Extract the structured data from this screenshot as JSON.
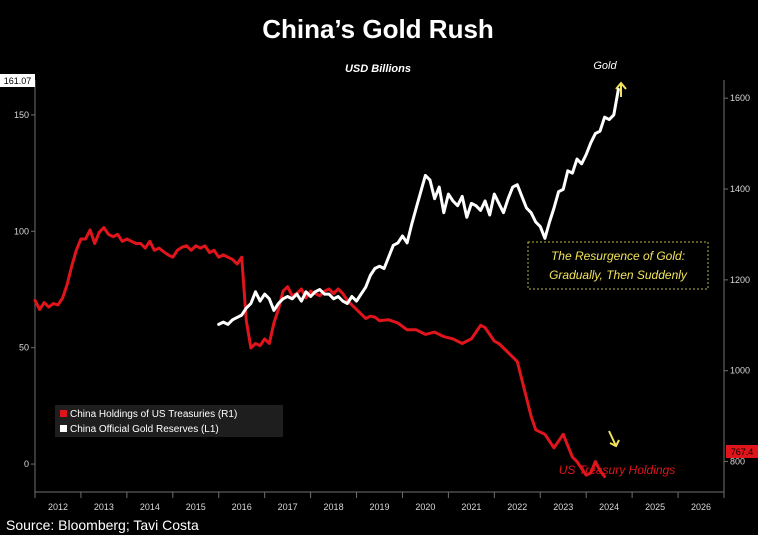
{
  "colors": {
    "background": "#000000",
    "gold_line": "#ffffff",
    "treasury_line": "#e0141b",
    "axis": "#6f6f6f",
    "tick_text": "#d8d8d8",
    "annotation_text": "#f2e35a",
    "callout_border": "#b8b44a",
    "arrow": "#f2e35a",
    "treasury_label": "#e0141b",
    "last_value_box_left": "#ffffff",
    "last_value_box_right": "#e0141b"
  },
  "chart_data": {
    "type": "line",
    "title": "China’s Gold Rush",
    "subtitle": "USD Billions",
    "source": "Source: Bloomberg; Tavi Costa",
    "x_axis": {
      "range": [
        2011.5,
        2026.5
      ],
      "tick_labels": [
        "2012",
        "2013",
        "2014",
        "2015",
        "2016",
        "2017",
        "2018",
        "2019",
        "2020",
        "2021",
        "2022",
        "2023",
        "2024",
        "2025",
        "2026"
      ]
    },
    "y_left": {
      "range": [
        -12,
        165
      ],
      "tick_labels": [
        "150",
        "100",
        "50",
        "0"
      ],
      "ticks": [
        150,
        100,
        50,
        0
      ]
    },
    "y_right": {
      "range": [
        733,
        1640
      ],
      "tick_labels": [
        "1600",
        "1400",
        "1200",
        "1000",
        "800"
      ],
      "ticks": [
        1600,
        1400,
        1200,
        1000,
        800
      ]
    },
    "legend": {
      "placement": "bottom-left",
      "items": [
        {
          "label": "China Holdings of US Treasuries (R1)",
          "color": "#e0141b"
        },
        {
          "label": "China Official Gold Reserves (L1)",
          "color": "#ffffff"
        }
      ]
    },
    "last_values": {
      "left": "161.07",
      "right": "767.4"
    },
    "annotations": {
      "gold_label": "Gold",
      "treasury_label": "US Treasury Holdings",
      "callout_line1": "The Resurgence of Gold:",
      "callout_line2": "Gradually, Then Suddenly"
    },
    "series": [
      {
        "name": "China Holdings of US Treasuries (R1)",
        "axis": "right",
        "x": [
          2011.5,
          2011.6,
          2011.7,
          2011.8,
          2011.9,
          2012.0,
          2012.1,
          2012.2,
          2012.3,
          2012.4,
          2012.5,
          2012.6,
          2012.7,
          2012.8,
          2012.9,
          2013.0,
          2013.1,
          2013.2,
          2013.3,
          2013.4,
          2013.5,
          2013.6,
          2013.7,
          2013.8,
          2013.9,
          2014.0,
          2014.1,
          2014.2,
          2014.3,
          2014.4,
          2014.5,
          2014.6,
          2014.7,
          2014.8,
          2014.9,
          2015.0,
          2015.1,
          2015.2,
          2015.3,
          2015.4,
          2015.5,
          2015.6,
          2015.7,
          2015.8,
          2015.9,
          2016.0,
          2016.1,
          2016.2,
          2016.3,
          2016.4,
          2016.5,
          2016.6,
          2016.7,
          2016.8,
          2016.9,
          2017.0,
          2017.1,
          2017.2,
          2017.3,
          2017.4,
          2017.5,
          2017.6,
          2017.7,
          2017.8,
          2017.9,
          2018.0,
          2018.1,
          2018.2,
          2018.3,
          2018.4,
          2018.5,
          2018.6,
          2018.7,
          2018.8,
          2018.9,
          2019.0,
          2019.2,
          2019.4,
          2019.6,
          2019.8,
          2020.0,
          2020.2,
          2020.4,
          2020.6,
          2020.8,
          2021.0,
          2021.1,
          2021.2,
          2021.3,
          2021.4,
          2021.5,
          2021.6,
          2021.8,
          2022.0,
          2022.1,
          2022.2,
          2022.3,
          2022.4,
          2022.6,
          2022.8,
          2023.0,
          2023.2,
          2023.3,
          2023.4,
          2023.5,
          2023.6,
          2023.7,
          2023.8,
          2023.9
        ],
        "values": [
          1155,
          1135,
          1150,
          1140,
          1148,
          1145,
          1160,
          1190,
          1230,
          1265,
          1290,
          1290,
          1310,
          1280,
          1305,
          1315,
          1300,
          1295,
          1300,
          1285,
          1290,
          1285,
          1280,
          1280,
          1270,
          1285,
          1265,
          1270,
          1262,
          1255,
          1250,
          1265,
          1272,
          1275,
          1265,
          1275,
          1270,
          1275,
          1260,
          1265,
          1250,
          1255,
          1250,
          1245,
          1235,
          1250,
          1110,
          1050,
          1060,
          1055,
          1070,
          1060,
          1105,
          1135,
          1175,
          1185,
          1165,
          1170,
          1180,
          1160,
          1175,
          1170,
          1165,
          1175,
          1180,
          1170,
          1180,
          1170,
          1155,
          1145,
          1135,
          1125,
          1115,
          1120,
          1118,
          1110,
          1112,
          1105,
          1090,
          1090,
          1080,
          1085,
          1075,
          1070,
          1060,
          1070,
          1085,
          1100,
          1095,
          1080,
          1065,
          1060,
          1040,
          1020,
          980,
          940,
          900,
          870,
          860,
          830,
          860,
          810,
          800,
          785,
          770,
          775,
          800,
          780,
          767
        ]
      },
      {
        "name": "China Official Gold Reserves (L1)",
        "axis": "left",
        "x": [
          2015.5,
          2015.6,
          2015.7,
          2015.8,
          2015.9,
          2016.0,
          2016.1,
          2016.2,
          2016.3,
          2016.4,
          2016.5,
          2016.6,
          2016.7,
          2016.8,
          2016.9,
          2017.0,
          2017.1,
          2017.2,
          2017.3,
          2017.4,
          2017.5,
          2017.6,
          2017.7,
          2017.8,
          2017.9,
          2018.0,
          2018.1,
          2018.2,
          2018.3,
          2018.4,
          2018.5,
          2018.6,
          2018.7,
          2018.8,
          2018.9,
          2019.0,
          2019.1,
          2019.2,
          2019.3,
          2019.4,
          2019.5,
          2019.6,
          2019.7,
          2019.8,
          2019.9,
          2020.0,
          2020.1,
          2020.2,
          2020.3,
          2020.4,
          2020.5,
          2020.6,
          2020.7,
          2020.8,
          2020.9,
          2021.0,
          2021.1,
          2021.2,
          2021.3,
          2021.4,
          2021.5,
          2021.6,
          2021.7,
          2021.8,
          2021.9,
          2022.0,
          2022.1,
          2022.2,
          2022.3,
          2022.4,
          2022.5,
          2022.6,
          2022.7,
          2022.8,
          2022.9,
          2023.0,
          2023.1,
          2023.2,
          2023.3,
          2023.4,
          2023.5,
          2023.6,
          2023.7,
          2023.8,
          2023.9,
          2024.0,
          2024.1,
          2024.2
        ],
        "values": [
          60,
          61,
          60,
          62,
          63,
          64,
          67,
          69,
          74,
          70,
          73,
          71,
          66,
          69,
          71,
          72,
          71,
          73,
          70,
          74,
          72,
          74,
          75,
          73,
          73,
          71,
          72,
          70,
          69,
          72,
          70,
          73,
          76,
          81,
          84,
          85,
          84,
          89,
          94,
          95,
          98,
          95,
          103,
          110,
          117,
          124,
          122,
          114,
          119,
          108,
          116,
          113,
          111,
          115,
          106,
          112,
          111,
          109,
          113,
          107,
          116,
          112,
          108,
          114,
          119,
          120,
          115,
          110,
          108,
          104,
          102,
          97,
          104,
          110,
          117,
          118,
          126,
          125,
          131,
          129,
          133,
          138,
          142,
          143,
          149,
          148,
          150,
          161
        ]
      }
    ]
  }
}
